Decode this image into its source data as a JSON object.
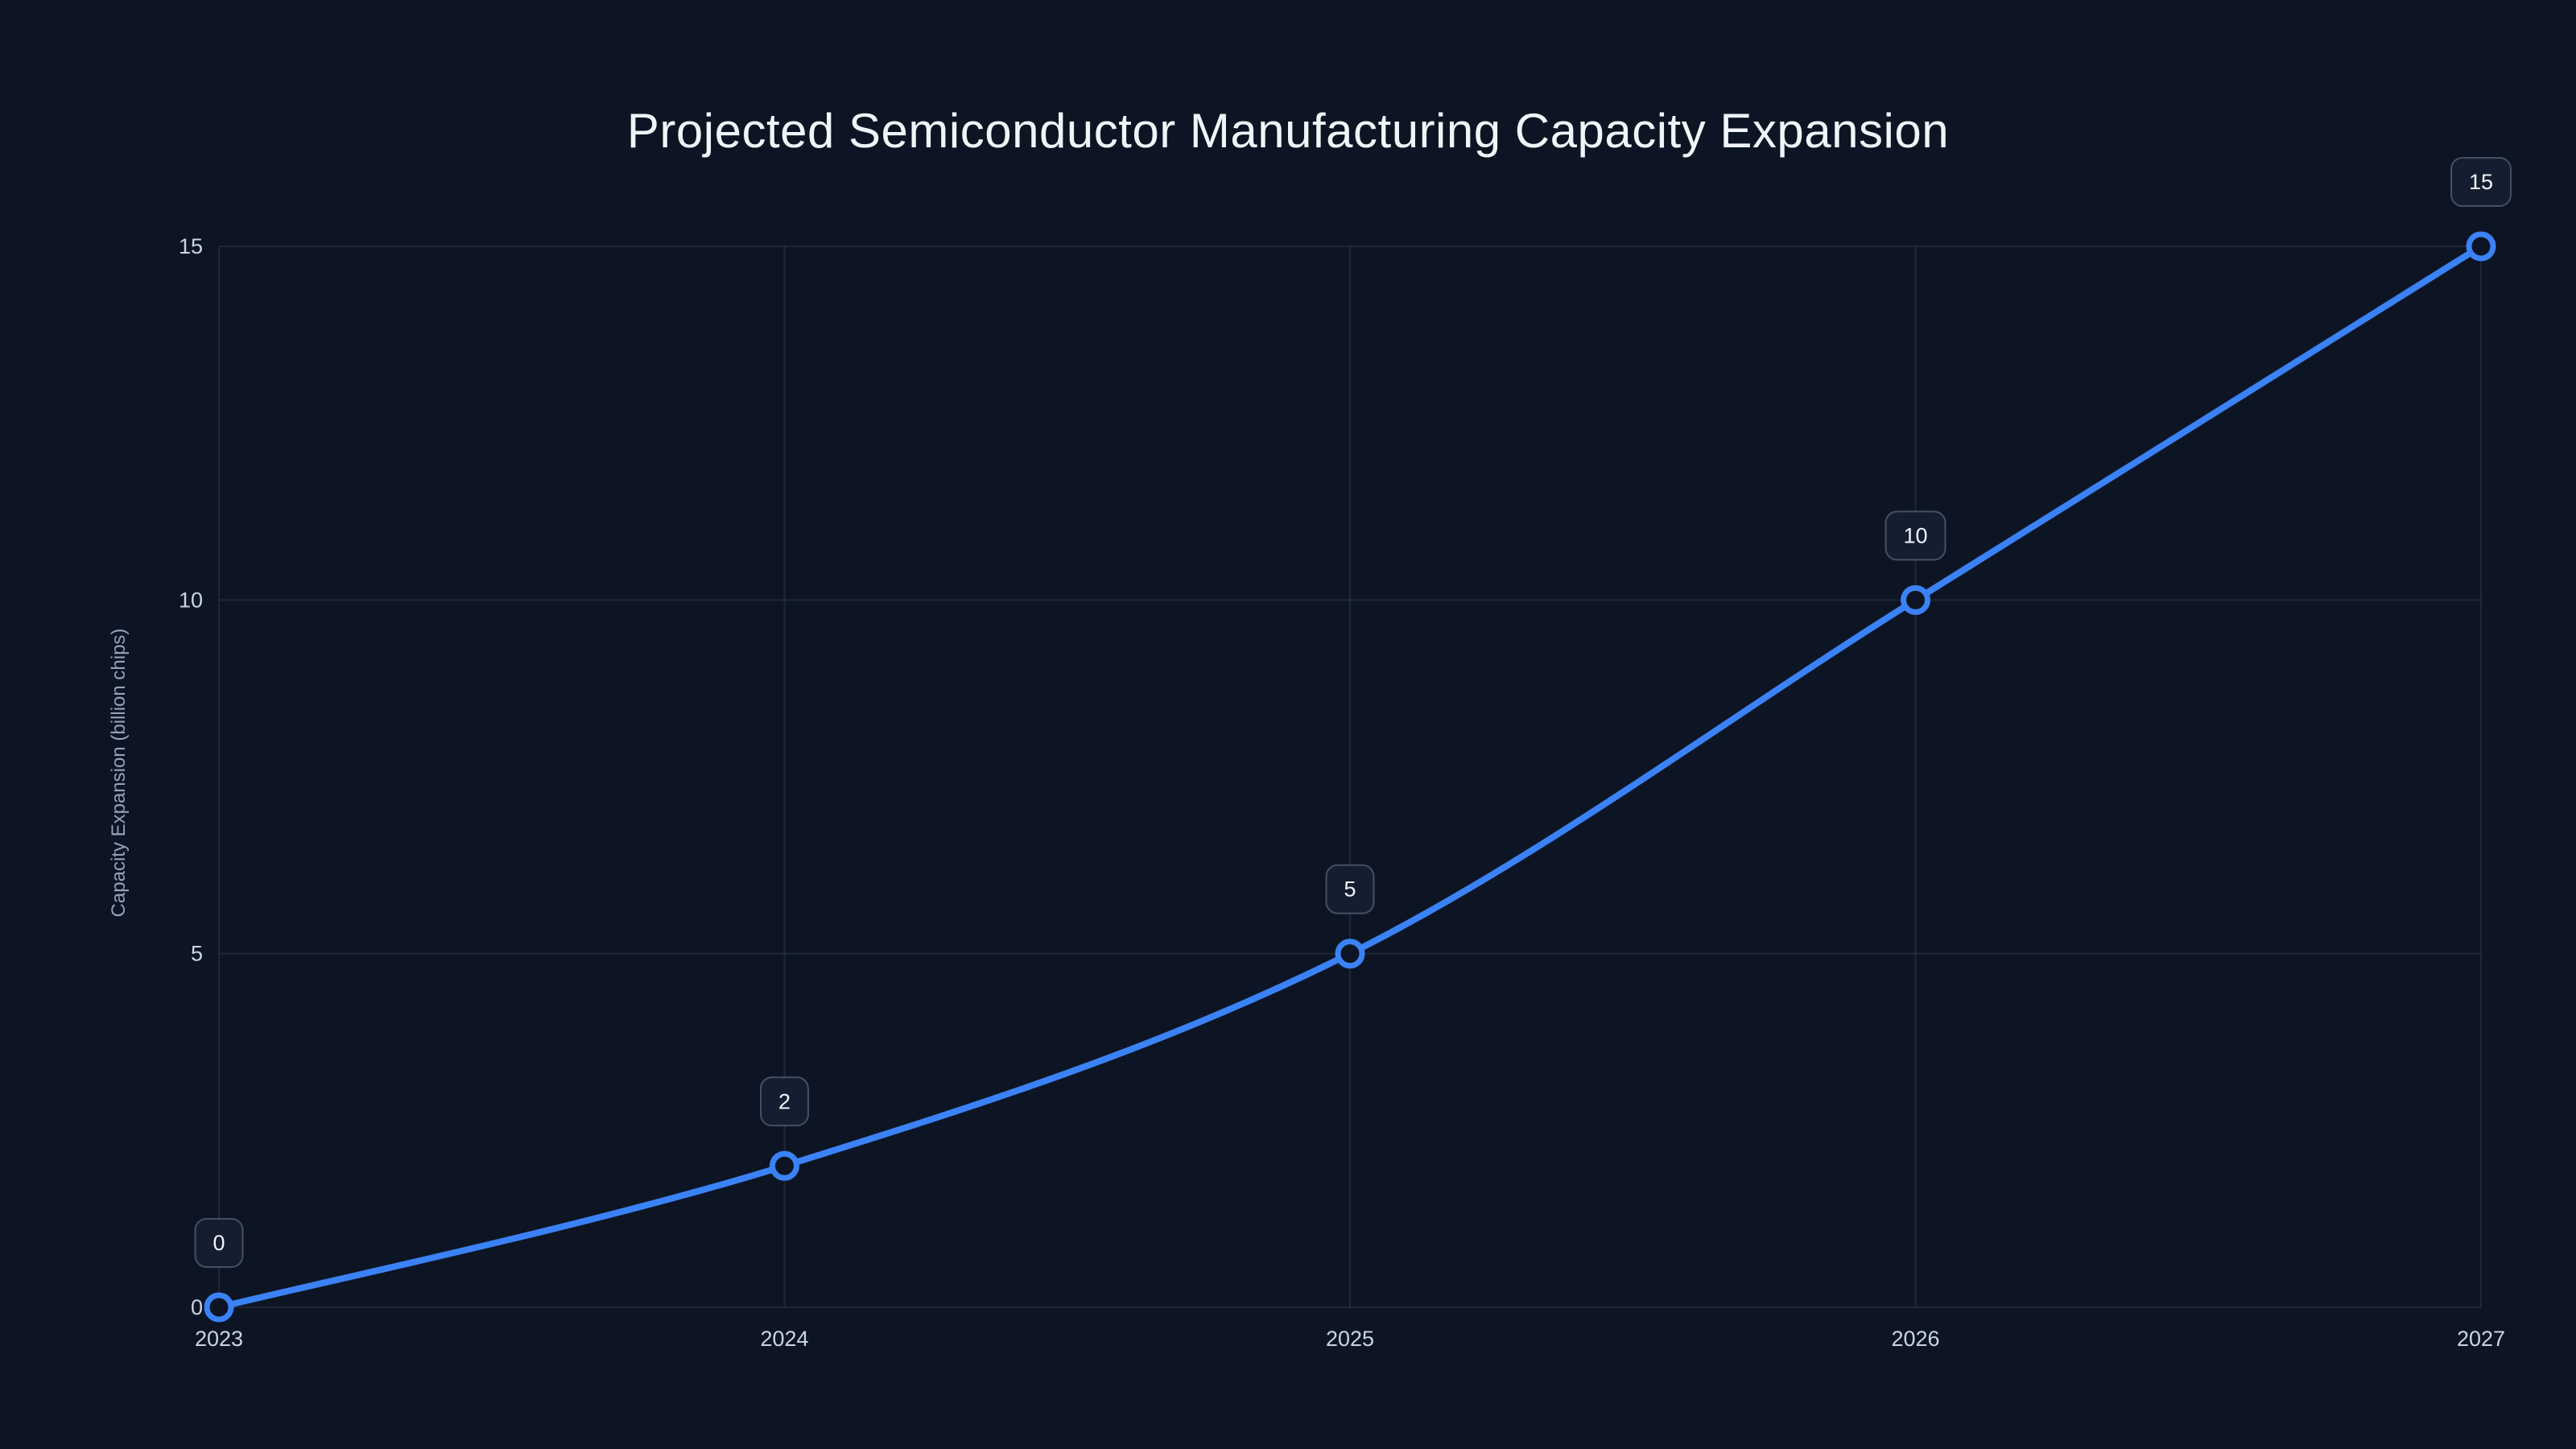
{
  "page": {
    "background": "#0d1524"
  },
  "chart_data": {
    "type": "line",
    "title": "Projected Semiconductor Manufacturing Capacity Expansion",
    "xlabel": "",
    "ylabel": "Capacity Expansion (billion chips)",
    "categories": [
      "2023",
      "2024",
      "2025",
      "2026",
      "2027"
    ],
    "series": [
      {
        "name": "Capacity Expansion",
        "values": [
          0,
          2,
          5,
          10,
          15
        ]
      }
    ],
    "data_labels": [
      "0",
      "2",
      "5",
      "10",
      "15"
    ],
    "ylim": [
      0,
      15
    ],
    "yticks": [
      0,
      5,
      10,
      15
    ],
    "grid": true,
    "legend": false,
    "styles": {
      "line_color": "#3b82f6",
      "point_fill": "#0d1524",
      "grid_color": "rgba(148,163,184,0.13)",
      "tick_color": "#cbd5e1",
      "axis_title_color": "#94a3b8",
      "title_color": "#f1f5f9",
      "badge_bg": "#151e30",
      "badge_border": "rgba(148,163,184,0.4)",
      "badge_text": "#f1f5f9"
    }
  }
}
